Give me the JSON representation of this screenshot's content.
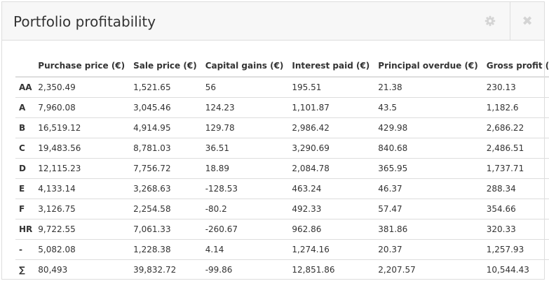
{
  "panel": {
    "title": "Portfolio profitability",
    "settings_icon": "gear-icon",
    "close_icon": "close-icon",
    "close_glyph": "✖"
  },
  "table": {
    "columns": [
      "",
      "Purchase price (€)",
      "Sale price (€)",
      "Capital gains (€)",
      "Interest paid (€)",
      "Principal overdue (€)",
      "Gross profit (€)"
    ],
    "rows": [
      [
        "AA",
        "2,350.49",
        "1,521.65",
        "56",
        "195.51",
        "21.38",
        "230.13"
      ],
      [
        "A",
        "7,960.08",
        "3,045.46",
        "124.23",
        "1,101.87",
        "43.5",
        "1,182.6"
      ],
      [
        "B",
        "16,519.12",
        "4,914.95",
        "129.78",
        "2,986.42",
        "429.98",
        "2,686.22"
      ],
      [
        "C",
        "19,483.56",
        "8,781.03",
        "36.51",
        "3,290.69",
        "840.68",
        "2,486.51"
      ],
      [
        "D",
        "12,115.23",
        "7,756.72",
        "18.89",
        "2,084.78",
        "365.95",
        "1,737.71"
      ],
      [
        "E",
        "4,133.14",
        "3,268.63",
        "-128.53",
        "463.24",
        "46.37",
        "288.34"
      ],
      [
        "F",
        "3,126.75",
        "2,254.58",
        "-80.2",
        "492.33",
        "57.47",
        "354.66"
      ],
      [
        "HR",
        "9,722.55",
        "7,061.33",
        "-260.67",
        "962.86",
        "381.86",
        "320.33"
      ],
      [
        "-",
        "5,082.08",
        "1,228.38",
        "4.14",
        "1,274.16",
        "20.37",
        "1,257.93"
      ],
      [
        "∑",
        "80,493",
        "39,832.72",
        "-99.86",
        "12,851.86",
        "2,207.57",
        "10,544.43"
      ]
    ]
  }
}
